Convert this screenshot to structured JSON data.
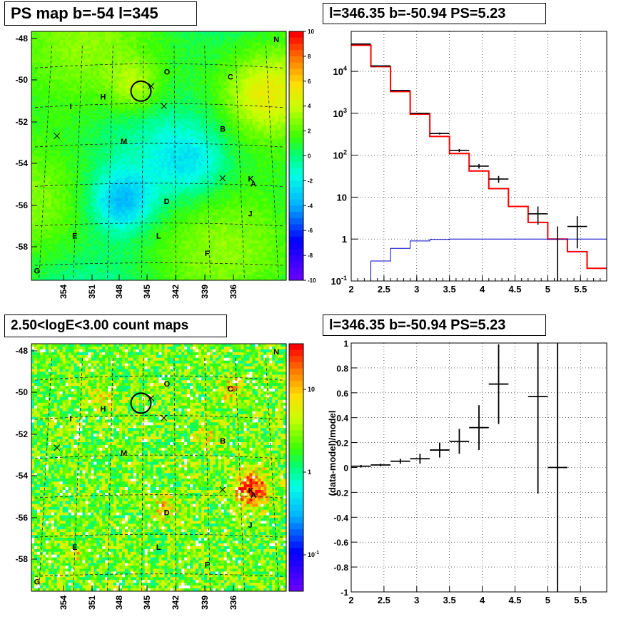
{
  "titles": {
    "ps_map": "PS map b=-54 l=345",
    "spectrum": "l=346.35 b=-50.94 PS=5.23",
    "count_maps": "2.50<logE<3.00 count maps",
    "residuals": "l=346.35 b=-50.94 PS=5.23"
  },
  "chart_data": [
    {
      "id": "ps_map",
      "type": "heatmap",
      "title": "PS map b=-54 l=345",
      "x_ticks": [
        "354",
        "351",
        "348",
        "345",
        "342",
        "339",
        "336"
      ],
      "y_ticks": [
        "-48",
        "-50",
        "-52",
        "-54",
        "-56",
        "-58"
      ],
      "colorbar_ticks": [
        "10",
        "8",
        "6",
        "4",
        "2",
        "0",
        "-2",
        "-4",
        "-6",
        "-8",
        "-10"
      ],
      "colorbar_range": [
        -10,
        10
      ],
      "source_labels": [
        "N",
        "O",
        "C",
        "H",
        "I",
        "B",
        "M",
        "K",
        "A",
        "D",
        "J",
        "E",
        "L",
        "F",
        "G"
      ]
    },
    {
      "id": "spectrum",
      "type": "line",
      "title": "l=346.35 b=-50.94 PS=5.23",
      "yscale": "log",
      "xlim": [
        2,
        5.9
      ],
      "ylim": [
        0.1,
        90000
      ],
      "x_ticks": [
        "2",
        "2.5",
        "3",
        "3.5",
        "4",
        "4.5",
        "5",
        "5.5"
      ],
      "y_ticks": [
        "10^-1",
        "1",
        "10",
        "10^2",
        "10^3",
        "10^4"
      ],
      "series": [
        {
          "style": "red step",
          "edges": [
            2,
            2.3,
            2.6,
            2.9,
            3.2,
            3.5,
            3.8,
            4.1,
            4.4,
            4.7,
            5.0,
            5.3,
            5.6,
            5.9
          ],
          "values": [
            42000,
            13000,
            3300,
            950,
            280,
            110,
            42,
            16,
            6,
            2.5,
            1,
            0.5,
            0.2
          ]
        },
        {
          "style": "blue step",
          "edges": [
            2,
            2.3,
            2.6,
            2.9,
            3.2,
            3.5,
            3.8,
            4.1,
            4.4,
            4.7,
            5.0,
            5.3,
            5.6,
            5.9
          ],
          "values": [
            0.1,
            0.3,
            0.6,
            0.9,
            0.98,
            1,
            1,
            1,
            1,
            1,
            1,
            1,
            1
          ]
        },
        {
          "style": "black data",
          "points": [
            {
              "x": 2.15,
              "y": 45000,
              "xerr": 0.15,
              "ylo": 44500,
              "yhi": 45500
            },
            {
              "x": 2.45,
              "y": 13500,
              "xerr": 0.15,
              "ylo": 13300,
              "yhi": 13700
            },
            {
              "x": 2.75,
              "y": 3500,
              "xerr": 0.15,
              "ylo": 3440,
              "yhi": 3560
            },
            {
              "x": 3.05,
              "y": 1000,
              "xerr": 0.15,
              "ylo": 970,
              "yhi": 1030
            },
            {
              "x": 3.35,
              "y": 330,
              "xerr": 0.15,
              "ylo": 312,
              "yhi": 348
            },
            {
              "x": 3.65,
              "y": 130,
              "xerr": 0.15,
              "ylo": 119,
              "yhi": 141
            },
            {
              "x": 3.95,
              "y": 55,
              "xerr": 0.15,
              "ylo": 48,
              "yhi": 62
            },
            {
              "x": 4.25,
              "y": 27,
              "xerr": 0.15,
              "ylo": 22,
              "yhi": 32
            },
            {
              "x": 4.85,
              "y": 4,
              "xerr": 0.15,
              "ylo": 2.2,
              "yhi": 6
            },
            {
              "x": 5.15,
              "y": 0.1,
              "xerr": 0,
              "ylo": 0.1,
              "yhi": 2
            },
            {
              "x": 5.45,
              "y": 2,
              "xerr": 0.15,
              "ylo": 0.6,
              "yhi": 3.5
            }
          ]
        }
      ]
    },
    {
      "id": "count_maps",
      "type": "heatmap",
      "title": "2.50<logE<3.00 count maps",
      "x_ticks": [
        "354",
        "351",
        "348",
        "345",
        "342",
        "339",
        "336"
      ],
      "y_ticks": [
        "-48",
        "-50",
        "-52",
        "-54",
        "-56",
        "-58"
      ],
      "colorbar_ticks": [
        "10",
        "1",
        "10^-1"
      ],
      "colorbar_scale": "log",
      "source_labels": [
        "N",
        "O",
        "C",
        "H",
        "I",
        "B",
        "M",
        "K",
        "A",
        "D",
        "J",
        "E",
        "L",
        "F",
        "G"
      ]
    },
    {
      "id": "residuals",
      "type": "scatter",
      "title": "l=346.35 b=-50.94 PS=5.23",
      "ylabel": "(data-model)/model",
      "xlim": [
        2,
        5.9
      ],
      "ylim": [
        -1,
        1
      ],
      "x_ticks": [
        "2",
        "2.5",
        "3",
        "3.5",
        "4",
        "4.5",
        "5",
        "5.5"
      ],
      "y_ticks": [
        "-1",
        "-0.8",
        "-0.6",
        "-0.4",
        "-0.2",
        "0",
        "0.2",
        "0.4",
        "0.6",
        "0.8",
        "1"
      ],
      "points": [
        {
          "x": 2.15,
          "y": 0.01,
          "xerr": 0.15,
          "yerr": 0.01
        },
        {
          "x": 2.45,
          "y": 0.02,
          "xerr": 0.15,
          "yerr": 0.01
        },
        {
          "x": 2.75,
          "y": 0.05,
          "xerr": 0.15,
          "yerr": 0.02
        },
        {
          "x": 3.05,
          "y": 0.07,
          "xerr": 0.15,
          "yerr": 0.04
        },
        {
          "x": 3.35,
          "y": 0.14,
          "xerr": 0.15,
          "yerr": 0.06
        },
        {
          "x": 3.65,
          "y": 0.21,
          "xerr": 0.15,
          "yerr": 0.1
        },
        {
          "x": 3.95,
          "y": 0.32,
          "xerr": 0.15,
          "yerr": 0.18
        },
        {
          "x": 4.25,
          "y": 0.67,
          "xerr": 0.15,
          "yerr": 0.32
        },
        {
          "x": 4.85,
          "y": 0.57,
          "xerr": 0.15,
          "yerr": 0.78
        },
        {
          "x": 5.15,
          "y": 0.0,
          "xerr": 0.15,
          "yerr": 1.0
        }
      ]
    }
  ]
}
